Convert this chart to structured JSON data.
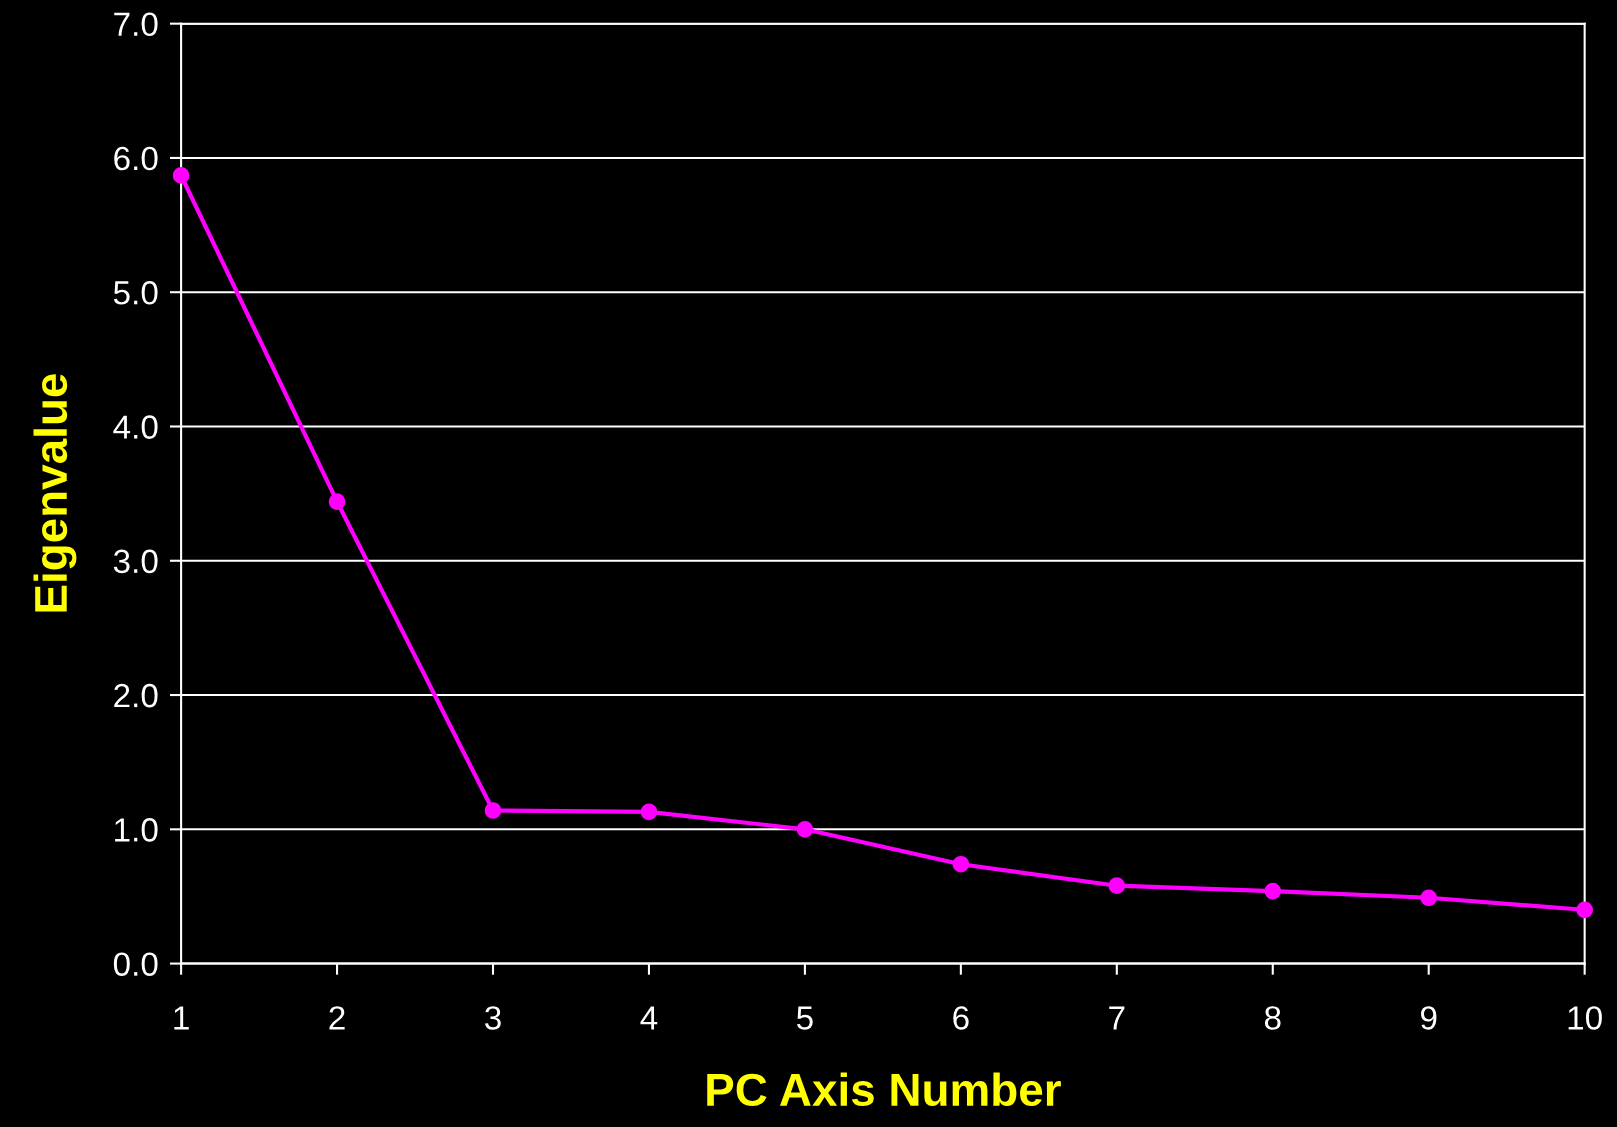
{
  "chart_data": {
    "type": "line",
    "xlabel": "PC Axis Number",
    "ylabel": "Eigenvalue",
    "x": [
      1,
      2,
      3,
      4,
      5,
      6,
      7,
      8,
      9,
      10
    ],
    "series": [
      {
        "color": "#ff00ff",
        "values": [
          5.87,
          3.44,
          1.14,
          1.13,
          1.0,
          0.74,
          0.58,
          0.54,
          0.49,
          0.4
        ]
      }
    ],
    "xlim": [
      1,
      10
    ],
    "xticks": [
      1,
      2,
      3,
      4,
      5,
      6,
      7,
      8,
      9,
      10
    ],
    "ylim": [
      0,
      7
    ],
    "yticks": [
      {
        "value": 0,
        "label": "0.0"
      },
      {
        "value": 1,
        "label": "1.0"
      },
      {
        "value": 2,
        "label": "2.0"
      },
      {
        "value": 3,
        "label": "3.0"
      },
      {
        "value": 4,
        "label": "4.0"
      },
      {
        "value": 5,
        "label": "5.0"
      },
      {
        "value": 6,
        "label": "6.0"
      },
      {
        "value": 7,
        "label": "7.0"
      }
    ],
    "grid": "y",
    "marker": "circle",
    "line_style": "solid"
  }
}
